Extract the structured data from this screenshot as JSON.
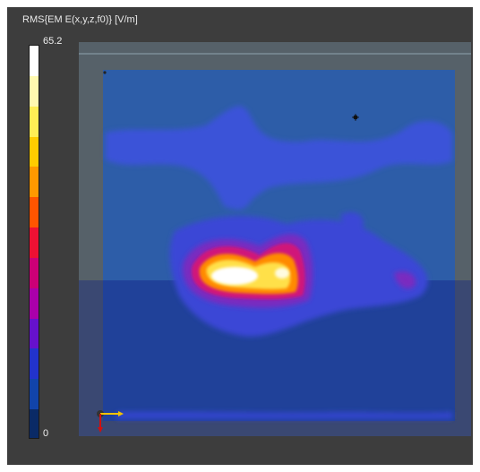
{
  "legend": {
    "title": "RMS{EM E(x,y,z,f0)} [V/m]",
    "max_label": "65.2",
    "min_label": "0",
    "colors": [
      "#ffffff",
      "#fff9b0",
      "#ffee55",
      "#ffcc00",
      "#ff9900",
      "#ff5500",
      "#ee1133",
      "#cc0077",
      "#aa00aa",
      "#6611cc",
      "#2233cc",
      "#1144aa",
      "#0a2a66"
    ]
  },
  "colors": {
    "panel_background": "#3d3d3d",
    "field_low": "#2b5aa8",
    "field_mid": "#3d4fd6",
    "field_hot": "#ffffff"
  },
  "icons": [
    "axes-triad-icon",
    "probe-marker-icon"
  ]
}
